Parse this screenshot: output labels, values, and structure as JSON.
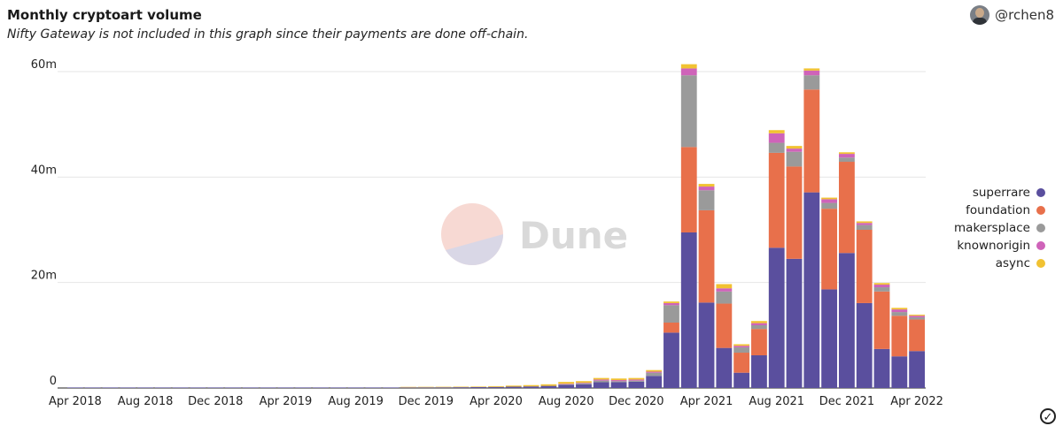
{
  "header": {
    "title": "Monthly cryptoart volume",
    "subtitle": "Nifty Gateway is not included in this graph since their payments are done off-chain.",
    "author": "@rchen8"
  },
  "watermark": {
    "text": "Dune"
  },
  "colors": {
    "superrare": "#5a4f9e",
    "foundation": "#e8704b",
    "makersplace": "#9a9a9a",
    "knownorigin": "#cf63b9",
    "async": "#f1c232"
  },
  "chart_data": {
    "type": "bar",
    "stacked": true,
    "title": "Monthly cryptoart volume",
    "ylim": [
      0,
      62000000
    ],
    "yticks": [
      0,
      20000000,
      40000000,
      60000000
    ],
    "ytick_labels": [
      "0",
      "20m",
      "40m",
      "60m"
    ],
    "grid": true,
    "legend_position": "right",
    "categories": [
      "2018-04",
      "2018-05",
      "2018-06",
      "2018-07",
      "2018-08",
      "2018-09",
      "2018-10",
      "2018-11",
      "2018-12",
      "2019-01",
      "2019-02",
      "2019-03",
      "2019-04",
      "2019-05",
      "2019-06",
      "2019-07",
      "2019-08",
      "2019-09",
      "2019-10",
      "2019-11",
      "2019-12",
      "2020-01",
      "2020-02",
      "2020-03",
      "2020-04",
      "2020-05",
      "2020-06",
      "2020-07",
      "2020-08",
      "2020-09",
      "2020-10",
      "2020-11",
      "2020-12",
      "2021-01",
      "2021-02",
      "2021-03",
      "2021-04",
      "2021-05",
      "2021-06",
      "2021-07",
      "2021-08",
      "2021-09",
      "2021-10",
      "2021-11",
      "2021-12",
      "2022-01",
      "2022-02",
      "2022-03",
      "2022-04"
    ],
    "xtick_labels": [
      {
        "index": 0,
        "label": "Apr 2018"
      },
      {
        "index": 4,
        "label": "Aug 2018"
      },
      {
        "index": 8,
        "label": "Dec 2018"
      },
      {
        "index": 12,
        "label": "Apr 2019"
      },
      {
        "index": 16,
        "label": "Aug 2019"
      },
      {
        "index": 20,
        "label": "Dec 2019"
      },
      {
        "index": 24,
        "label": "Apr 2020"
      },
      {
        "index": 28,
        "label": "Aug 2020"
      },
      {
        "index": 32,
        "label": "Dec 2020"
      },
      {
        "index": 36,
        "label": "Apr 2021"
      },
      {
        "index": 40,
        "label": "Aug 2021"
      },
      {
        "index": 44,
        "label": "Dec 2021"
      },
      {
        "index": 48,
        "label": "Apr 2022"
      }
    ],
    "series": [
      {
        "name": "superrare",
        "values": [
          20000,
          30000,
          40000,
          30000,
          40000,
          50000,
          60000,
          40000,
          30000,
          40000,
          50000,
          60000,
          60000,
          70000,
          80000,
          90000,
          80000,
          90000,
          100000,
          110000,
          120000,
          130000,
          150000,
          180000,
          200000,
          250000,
          300000,
          400000,
          600000,
          700000,
          1100000,
          1100000,
          1200000,
          2300000,
          10500000,
          29500000,
          16200000,
          7600000,
          2900000,
          6200000,
          26600000,
          24500000,
          37100000,
          18700000,
          25600000,
          16100000,
          7400000,
          6000000,
          7000000
        ]
      },
      {
        "name": "foundation",
        "values": [
          0,
          0,
          0,
          0,
          0,
          0,
          0,
          0,
          0,
          0,
          0,
          0,
          0,
          0,
          0,
          0,
          0,
          0,
          0,
          0,
          0,
          0,
          0,
          0,
          0,
          0,
          0,
          0,
          0,
          0,
          0,
          0,
          0,
          0,
          1900000,
          16200000,
          17500000,
          8400000,
          3800000,
          5000000,
          18000000,
          17500000,
          19500000,
          15300000,
          17300000,
          13900000,
          10900000,
          7700000,
          6000000
        ]
      },
      {
        "name": "makersplace",
        "values": [
          0,
          0,
          0,
          0,
          0,
          0,
          0,
          0,
          0,
          0,
          0,
          0,
          0,
          0,
          0,
          0,
          0,
          0,
          0,
          0,
          0,
          0,
          0,
          0,
          0,
          0,
          0,
          0,
          100000,
          200000,
          300000,
          200000,
          200000,
          600000,
          3300000,
          13600000,
          3800000,
          2300000,
          1000000,
          700000,
          1900000,
          2800000,
          2700000,
          1100000,
          800000,
          900000,
          800000,
          700000,
          400000
        ]
      },
      {
        "name": "knownorigin",
        "values": [
          0,
          0,
          0,
          0,
          0,
          0,
          0,
          0,
          0,
          0,
          0,
          0,
          0,
          0,
          0,
          0,
          0,
          0,
          0,
          0,
          0,
          0,
          0,
          0,
          0,
          0,
          0,
          0,
          100000,
          100000,
          200000,
          200000,
          200000,
          200000,
          400000,
          1300000,
          700000,
          600000,
          300000,
          400000,
          1800000,
          600000,
          900000,
          700000,
          700000,
          400000,
          500000,
          500000,
          300000
        ]
      },
      {
        "name": "async",
        "values": [
          0,
          0,
          0,
          0,
          0,
          0,
          0,
          0,
          0,
          0,
          0,
          0,
          0,
          0,
          0,
          0,
          0,
          0,
          0,
          20000,
          50000,
          60000,
          60000,
          100000,
          150000,
          200000,
          250000,
          300000,
          350000,
          300000,
          300000,
          300000,
          300000,
          300000,
          300000,
          800000,
          500000,
          800000,
          300000,
          400000,
          600000,
          500000,
          400000,
          300000,
          300000,
          300000,
          300000,
          300000,
          200000
        ]
      }
    ]
  }
}
